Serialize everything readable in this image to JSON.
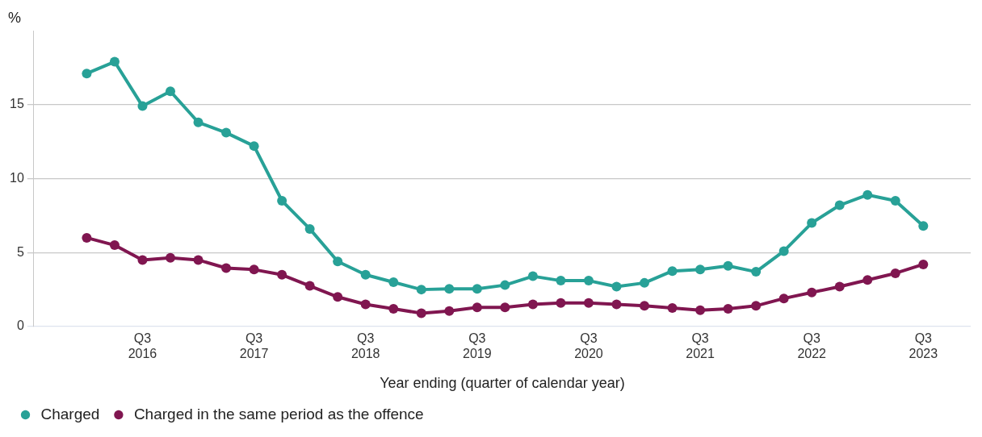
{
  "chart_data": {
    "type": "line",
    "xlabel": "Year ending (quarter of calendar year)",
    "ylabel": "%",
    "categories": [
      null,
      null,
      "Q3 2016",
      null,
      null,
      null,
      "Q3 2017",
      null,
      null,
      null,
      "Q3 2018",
      null,
      null,
      null,
      "Q3 2019",
      null,
      null,
      null,
      "Q3 2020",
      null,
      null,
      null,
      "Q3 2021",
      null,
      null,
      null,
      "Q3 2022",
      null,
      null,
      null,
      "Q3 2023"
    ],
    "series": [
      {
        "name": "Charged",
        "color": "#28a197",
        "values": [
          17.1,
          17.9,
          14.9,
          15.9,
          13.8,
          13.1,
          12.2,
          8.5,
          6.6,
          4.4,
          3.5,
          3.0,
          2.5,
          2.55,
          2.55,
          2.8,
          3.4,
          3.1,
          3.1,
          2.7,
          2.95,
          3.75,
          3.85,
          4.1,
          3.7,
          5.1,
          7.0,
          8.2,
          8.9,
          8.5,
          6.8
        ]
      },
      {
        "name": "Charged in the same period as the offence",
        "color": "#801650",
        "values": [
          6.0,
          5.5,
          4.5,
          4.65,
          4.5,
          3.95,
          3.85,
          3.5,
          2.75,
          2.0,
          1.5,
          1.2,
          0.9,
          1.05,
          1.3,
          1.3,
          1.5,
          1.6,
          1.6,
          1.5,
          1.4,
          1.25,
          1.1,
          1.2,
          1.4,
          1.9,
          2.3,
          2.7,
          3.15,
          3.6,
          4.2
        ]
      }
    ],
    "ylim": [
      0,
      20
    ],
    "yticks": [
      0,
      5,
      10,
      15
    ],
    "grid": "y",
    "legend": "bottom left",
    "marker": "circle",
    "line_style": "solid"
  }
}
